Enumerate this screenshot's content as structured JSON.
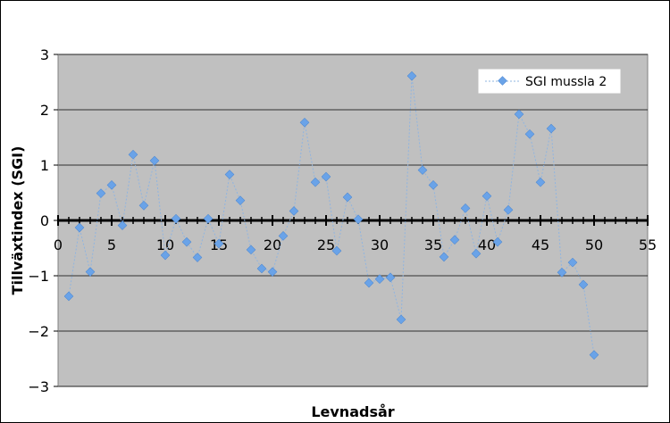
{
  "chart_data": {
    "type": "scatter",
    "title": "",
    "xlabel": "Levnadsår",
    "ylabel": "Tillväxtindex (SGI)",
    "xlim": [
      0,
      55
    ],
    "ylim": [
      -3,
      3
    ],
    "xticks": [
      0,
      5,
      10,
      15,
      20,
      25,
      30,
      35,
      40,
      45,
      50,
      55
    ],
    "yticks": [
      -3,
      -2,
      -1,
      0,
      1,
      2,
      3
    ],
    "grid": "horizontal",
    "legend_position": "top-right",
    "colors": {
      "plot_bg": "#c0c0c0",
      "marker": "#6aa3e8",
      "line": "#8fb4e0",
      "zero_line": "#000000"
    },
    "series": [
      {
        "name": "SGI mussla 2",
        "x": [
          1,
          2,
          3,
          4,
          5,
          6,
          7,
          8,
          9,
          10,
          11,
          12,
          13,
          14,
          15,
          16,
          17,
          18,
          19,
          20,
          21,
          22,
          23,
          24,
          25,
          26,
          27,
          28,
          29,
          30,
          31,
          32,
          33,
          34,
          35,
          36,
          37,
          38,
          39,
          40,
          41,
          42,
          43,
          44,
          45,
          46,
          47,
          48,
          49,
          50
        ],
        "y": [
          -1.37,
          -0.13,
          -0.93,
          0.49,
          0.64,
          -0.09,
          1.19,
          0.27,
          1.08,
          -0.63,
          0.03,
          -0.39,
          -0.67,
          0.03,
          -0.42,
          0.83,
          0.36,
          -0.53,
          -0.87,
          -0.93,
          -0.28,
          0.17,
          1.77,
          0.69,
          0.79,
          -0.55,
          0.42,
          0.02,
          -1.13,
          -1.06,
          -1.03,
          -1.79,
          2.61,
          0.91,
          0.64,
          -0.66,
          -0.35,
          0.22,
          -0.6,
          0.44,
          -0.39,
          0.19,
          1.92,
          1.56,
          0.69,
          1.66,
          -0.94,
          -0.76,
          -1.16,
          -2.43
        ]
      }
    ]
  }
}
